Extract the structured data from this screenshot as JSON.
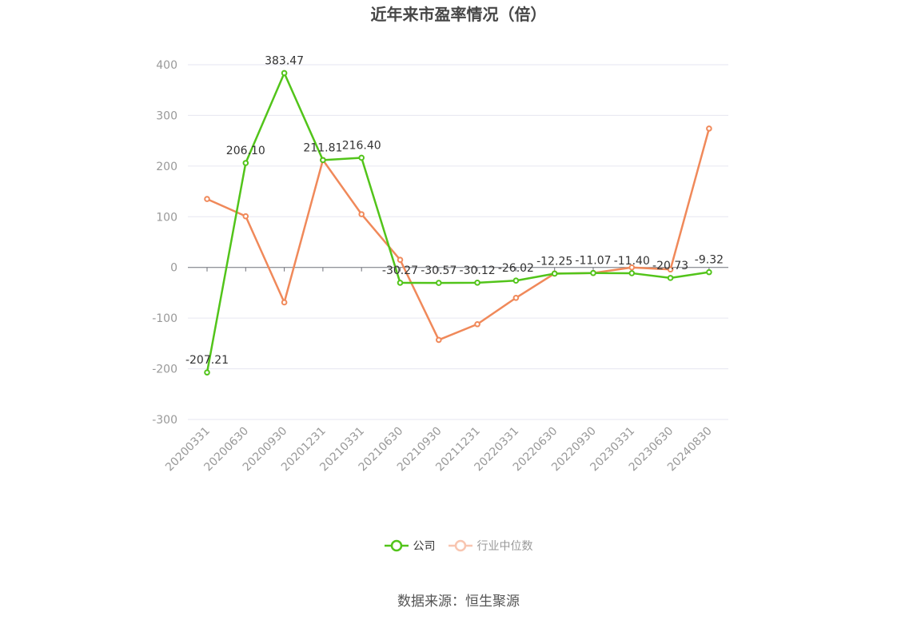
{
  "chart_data": {
    "type": "line",
    "title": "近年来市盈率情况（倍）",
    "categories": [
      "20200331",
      "20200630",
      "20200930",
      "20201231",
      "20210331",
      "20210630",
      "20210930",
      "20211231",
      "20220331",
      "20220630",
      "20220930",
      "20230331",
      "20230630",
      "20240830"
    ],
    "ylim": [
      -300,
      400
    ],
    "yticks": [
      400,
      300,
      200,
      100,
      0,
      -100,
      -200,
      -300
    ],
    "grid": true,
    "legend_position": "bottom",
    "series": [
      {
        "name": "公司",
        "color": "#52c41a",
        "values": [
          -207.21,
          206.1,
          383.47,
          211.81,
          216.4,
          -30.27,
          -30.57,
          -30.12,
          -26.02,
          -12.25,
          -11.07,
          -11.4,
          -20.73,
          -9.32
        ],
        "labels": [
          "-207.21",
          "206.10",
          "383.47",
          "211.81",
          "216.40",
          "-30.27",
          "-30.57",
          "-30.12",
          "-26.02",
          "-12.25",
          "-11.07",
          "-11.40",
          "-20.73",
          "-9.32"
        ]
      },
      {
        "name": "行业中位数",
        "color": "#f0895a",
        "values": [
          135,
          101,
          -69,
          212,
          105,
          15,
          -143,
          -112,
          -60,
          -12,
          -11,
          0,
          -4,
          274
        ]
      }
    ]
  },
  "legend": {
    "a": "公司",
    "b": "行业中位数"
  },
  "source": "数据来源：恒生聚源"
}
